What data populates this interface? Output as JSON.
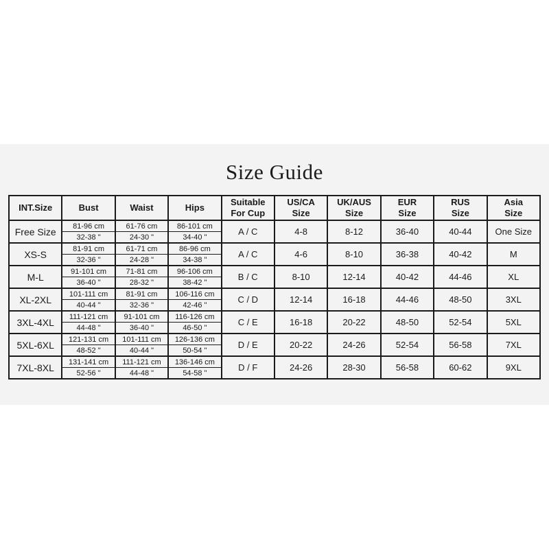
{
  "page": {
    "title": "Size Guide",
    "background_color": "#ffffff",
    "panel_color": "#f2f3f2",
    "grid_color": "#1a1a1a",
    "text_color": "#1a1a1a"
  },
  "table": {
    "headers": [
      "INT.Size",
      "Bust",
      "Waist",
      "Hips",
      "Suitable\nFor Cup",
      "US/CA\nSize",
      "UK/AUS\nSize",
      "EUR\nSize",
      "RUS\nSize",
      "Asia\nSize"
    ],
    "rows": [
      {
        "int_size": "Free Size",
        "bust_cm": "81-96 cm",
        "bust_in": "32-38 \"",
        "waist_cm": "61-76 cm",
        "waist_in": "24-30 \"",
        "hips_cm": "86-101 cm",
        "hips_in": "34-40 \"",
        "cup": "A / C",
        "us_ca": "4-8",
        "uk_aus": "8-12",
        "eur": "36-40",
        "rus": "40-44",
        "asia": "One Size"
      },
      {
        "int_size": "XS-S",
        "bust_cm": "81-91 cm",
        "bust_in": "32-36 \"",
        "waist_cm": "61-71 cm",
        "waist_in": "24-28 \"",
        "hips_cm": "86-96 cm",
        "hips_in": "34-38 \"",
        "cup": "A / C",
        "us_ca": "4-6",
        "uk_aus": "8-10",
        "eur": "36-38",
        "rus": "40-42",
        "asia": "M"
      },
      {
        "int_size": "M-L",
        "bust_cm": "91-101 cm",
        "bust_in": "36-40 \"",
        "waist_cm": "71-81 cm",
        "waist_in": "28-32 \"",
        "hips_cm": "96-106 cm",
        "hips_in": "38-42 \"",
        "cup": "B / C",
        "us_ca": "8-10",
        "uk_aus": "12-14",
        "eur": "40-42",
        "rus": "44-46",
        "asia": "XL"
      },
      {
        "int_size": "XL-2XL",
        "bust_cm": "101-111 cm",
        "bust_in": "40-44 \"",
        "waist_cm": "81-91 cm",
        "waist_in": "32-36 \"",
        "hips_cm": "106-116 cm",
        "hips_in": "42-46 \"",
        "cup": "C / D",
        "us_ca": "12-14",
        "uk_aus": "16-18",
        "eur": "44-46",
        "rus": "48-50",
        "asia": "3XL"
      },
      {
        "int_size": "3XL-4XL",
        "bust_cm": "111-121 cm",
        "bust_in": "44-48 \"",
        "waist_cm": "91-101 cm",
        "waist_in": "36-40 \"",
        "hips_cm": "116-126 cm",
        "hips_in": "46-50 \"",
        "cup": "C / E",
        "us_ca": "16-18",
        "uk_aus": "20-22",
        "eur": "48-50",
        "rus": "52-54",
        "asia": "5XL"
      },
      {
        "int_size": "5XL-6XL",
        "bust_cm": "121-131 cm",
        "bust_in": "48-52 \"",
        "waist_cm": "101-111 cm",
        "waist_in": "40-44 \"",
        "hips_cm": "126-136 cm",
        "hips_in": "50-54 \"",
        "cup": "D / E",
        "us_ca": "20-22",
        "uk_aus": "24-26",
        "eur": "52-54",
        "rus": "56-58",
        "asia": "7XL"
      },
      {
        "int_size": "7XL-8XL",
        "bust_cm": "131-141 cm",
        "bust_in": "52-56 \"",
        "waist_cm": "111-121 cm",
        "waist_in": "44-48 \"",
        "hips_cm": "136-146 cm",
        "hips_in": "54-58 \"",
        "cup": "D / F",
        "us_ca": "24-26",
        "uk_aus": "28-30",
        "eur": "56-58",
        "rus": "60-62",
        "asia": "9XL"
      }
    ]
  }
}
